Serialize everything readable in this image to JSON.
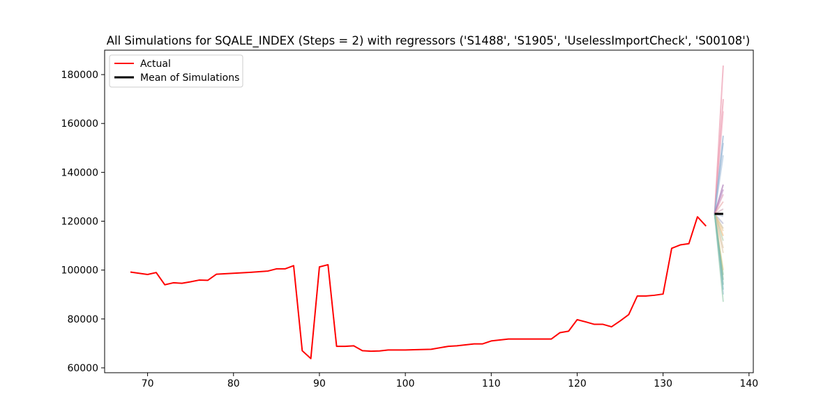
{
  "chart_data": {
    "type": "line",
    "title": "All Simulations for SQALE_INDEX (Steps = 2) with regressors ('S1488', 'S1905', 'UselessImportCheck', 'S00108')",
    "xlabel": "",
    "ylabel": "",
    "xlim": [
      65,
      140.5
    ],
    "ylim": [
      58000,
      190000
    ],
    "xticks": [
      70,
      80,
      90,
      100,
      110,
      120,
      130,
      140
    ],
    "yticks": [
      60000,
      80000,
      100000,
      120000,
      140000,
      160000,
      180000
    ],
    "grid": false,
    "legend": {
      "placement": "top-left",
      "entries": [
        "Actual",
        "Mean of Simulations"
      ]
    },
    "series": [
      {
        "name": "Actual",
        "color": "#ff0000",
        "x": [
          68,
          70,
          71,
          72,
          73,
          74,
          75,
          76,
          77,
          78,
          80,
          82,
          84,
          85,
          86,
          87,
          88,
          89,
          90,
          91,
          92,
          93,
          94,
          95,
          96,
          97,
          98,
          100,
          101,
          103,
          105,
          106,
          108,
          109,
          110,
          112,
          113,
          115,
          117,
          118,
          119,
          120,
          121,
          122,
          123,
          124,
          125,
          126,
          127,
          128,
          129,
          130,
          131,
          132,
          133,
          134,
          135
        ],
        "y": [
          99200,
          98200,
          99000,
          94000,
          94800,
          94600,
          95200,
          95900,
          95800,
          98300,
          98700,
          99100,
          99600,
          100500,
          100500,
          101800,
          67000,
          63800,
          101300,
          102200,
          68800,
          68800,
          69000,
          67000,
          66800,
          66900,
          67300,
          67300,
          67400,
          67600,
          68800,
          69000,
          69800,
          69800,
          71000,
          71800,
          71800,
          71800,
          71800,
          74400,
          75000,
          79700,
          78800,
          77800,
          77800,
          76800,
          79200,
          81800,
          89400,
          89400,
          89700,
          90200,
          108900,
          110300,
          110800,
          121800,
          118000
        ]
      },
      {
        "name": "Mean of Simulations",
        "color": "#000000",
        "x": [
          136,
          137
        ],
        "y": [
          123000,
          123000
        ]
      }
    ],
    "simulations": {
      "start": [
        136,
        123000
      ],
      "end_x": 137,
      "end_values": [
        183700,
        170000,
        165000,
        155000,
        152000,
        147000,
        135000,
        133000,
        131000,
        128000,
        125000,
        122000,
        119000,
        117000,
        116000,
        114000,
        112000,
        109000,
        107000,
        100000,
        98000,
        96000,
        94000,
        92000,
        90000,
        87000
      ],
      "colors": [
        "#e8849c",
        "#e8849c",
        "#f0a8bc",
        "#7da3c8",
        "#8fb0d4",
        "#a0bcd8",
        "#9b5ea8",
        "#b07ab8",
        "#d68fb0",
        "#e8a0a0",
        "#c8a0b0",
        "#b0c4d8",
        "#a8a8c8",
        "#c8b898",
        "#e8c890",
        "#f0b070",
        "#a8c8a0",
        "#d8c0a0",
        "#e0c8a8",
        "#f0d080",
        "#90c0a0",
        "#80b898",
        "#7ab0a0",
        "#70c0b0",
        "#88b8d0",
        "#90c8a8"
      ]
    }
  }
}
